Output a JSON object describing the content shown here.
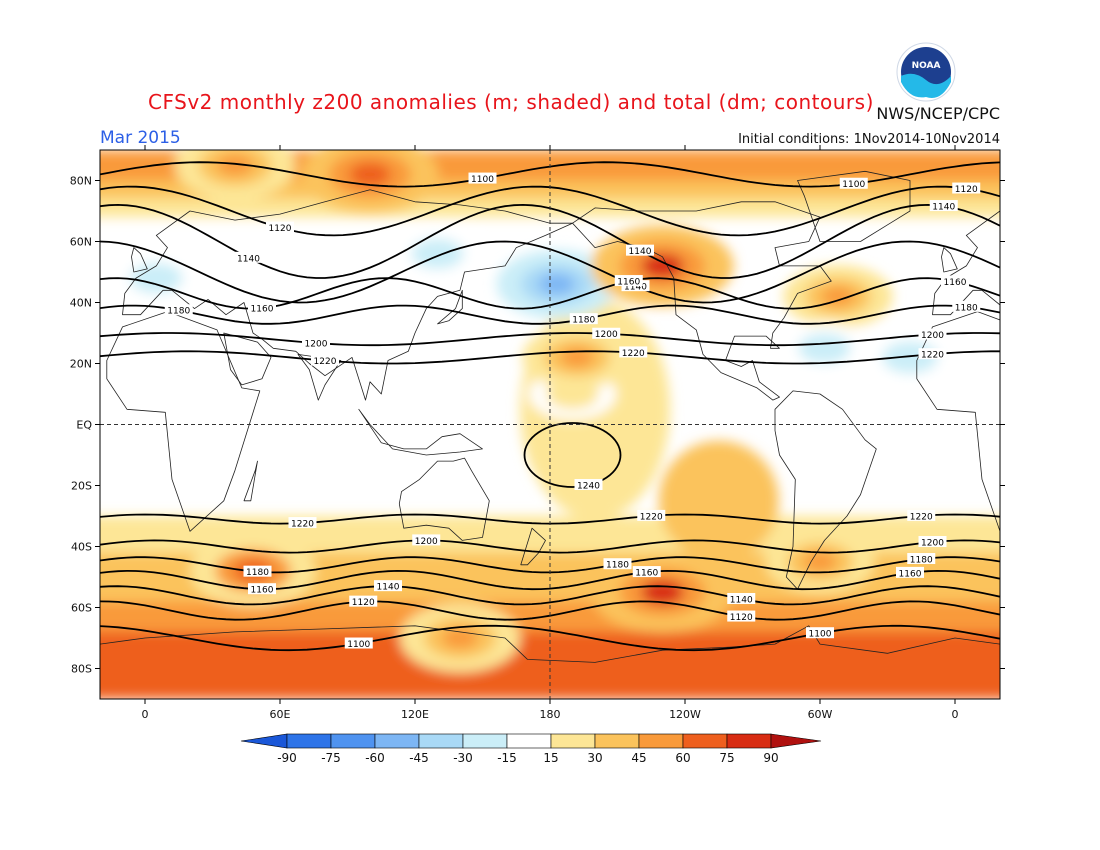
{
  "header": {
    "title": "CFSv2 monthly z200 anomalies (m; shaded) and total (dm; contours)",
    "agency": "NWS/NCEP/CPC",
    "month": "Mar 2015",
    "initial_conditions": "Initial conditions: 1Nov2014-10Nov2014"
  },
  "logo": {
    "name": "noaa-logo",
    "text": "NOAA"
  },
  "chart_data": {
    "type": "heatmap",
    "title": "CFSv2 monthly z200 anomalies (m; shaded) and total (dm; contours)",
    "subtitle": "Mar 2015",
    "projection": "cylindrical equidistant",
    "x_range_lon": [
      -20,
      380
    ],
    "y_range_lat": [
      -90,
      90
    ],
    "x_ticks": [
      {
        "lon": 0,
        "label": "0"
      },
      {
        "lon": 60,
        "label": "60E"
      },
      {
        "lon": 120,
        "label": "120E"
      },
      {
        "lon": 180,
        "label": "180"
      },
      {
        "lon": 240,
        "label": "120W"
      },
      {
        "lon": 300,
        "label": "60W"
      },
      {
        "lon": 360,
        "label": "0"
      }
    ],
    "y_ticks": [
      {
        "lat": 80,
        "label": "80N"
      },
      {
        "lat": 60,
        "label": "60N"
      },
      {
        "lat": 40,
        "label": "40N"
      },
      {
        "lat": 20,
        "label": "20N"
      },
      {
        "lat": 0,
        "label": "EQ"
      },
      {
        "lat": -20,
        "label": "20S"
      },
      {
        "lat": -40,
        "label": "40S"
      },
      {
        "lat": -60,
        "label": "60S"
      },
      {
        "lat": -80,
        "label": "80S"
      }
    ],
    "grid": "dashed at 180 and equator",
    "colorbar": {
      "labels": [
        "-90",
        "-75",
        "-60",
        "-45",
        "-30",
        "-15",
        "15",
        "30",
        "45",
        "60",
        "75",
        "90"
      ],
      "colors": [
        "#1a57d8",
        "#2e74e8",
        "#4f93f0",
        "#7db6f4",
        "#a9d9f6",
        "#cbeef8",
        "#ffffff",
        "#fde696",
        "#fbc35c",
        "#f99a3a",
        "#ee5f1e",
        "#d82c12",
        "#b0110f"
      ]
    },
    "anomaly_features": [
      {
        "sign": "positive",
        "lon": 100,
        "lat": 82,
        "value": 70
      },
      {
        "sign": "positive",
        "lon": 40,
        "lat": 85,
        "value": 55
      },
      {
        "sign": "negative",
        "lon": 183,
        "lat": 46,
        "value": -55
      },
      {
        "sign": "negative",
        "lon": 130,
        "lat": 56,
        "value": -25
      },
      {
        "sign": "negative",
        "lon": 5,
        "lat": 48,
        "value": -25
      },
      {
        "sign": "positive",
        "lon": 230,
        "lat": 52,
        "value": 75
      },
      {
        "sign": "positive",
        "lon": 308,
        "lat": 42,
        "value": 45
      },
      {
        "sign": "negative",
        "lon": 302,
        "lat": 25,
        "value": -25
      },
      {
        "sign": "negative",
        "lon": 340,
        "lat": 22,
        "value": -30
      },
      {
        "sign": "positive",
        "lon": 190,
        "lat": 10,
        "value": 25
      },
      {
        "sign": "positive",
        "lon": 192,
        "lat": 22,
        "value": 45
      },
      {
        "sign": "positive",
        "lon": 230,
        "lat": -55,
        "value": 75
      },
      {
        "sign": "positive",
        "lon": 48,
        "lat": -48,
        "value": 60
      },
      {
        "sign": "positive",
        "lon": 140,
        "lat": -70,
        "value": 55
      },
      {
        "sign": "positive",
        "lon": 300,
        "lat": -45,
        "value": 45
      }
    ],
    "contour_labels": [
      "1100",
      "1120",
      "1140",
      "1160",
      "1180",
      "1200",
      "1220",
      "1240"
    ]
  }
}
